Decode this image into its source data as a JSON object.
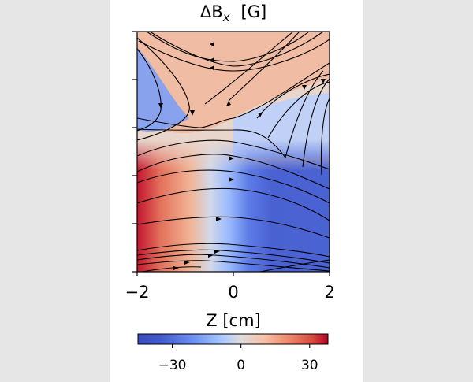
{
  "chart_data": {
    "type": "heatmap",
    "title": "ΔB",
    "title_subscript": "x",
    "title_unit": "[G]",
    "xlabel": "Z [cm]",
    "ylabel": "",
    "xlim": [
      -2,
      2
    ],
    "x_ticks": [
      -2,
      0,
      2
    ],
    "x_tick_labels": [
      "−2",
      "0",
      "2"
    ],
    "y_tick_count": 6,
    "y_tick_labels_shown": false,
    "colormap": "coolwarm",
    "color_range": [
      -45,
      38
    ],
    "colorbar_ticks": [
      -30,
      0,
      30
    ],
    "colorbar_tick_labels": [
      "−30",
      "0",
      "30"
    ],
    "colorbar_orientation": "horizontal",
    "overlay": "streamlines",
    "streamline_color": "#000000",
    "grid": false
  }
}
